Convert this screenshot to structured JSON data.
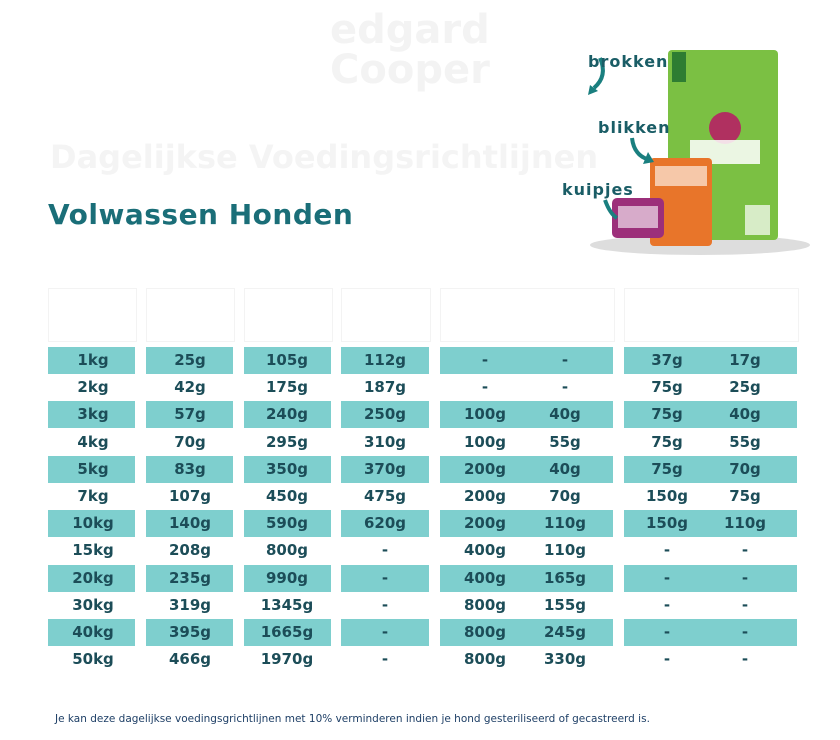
{
  "logo": "edgard Cooper",
  "header": {
    "title": "Dagelijkse Voedingsrichtlijnen",
    "subtitle": "Volwassen Honden"
  },
  "product_labels": [
    "brokken",
    "blikken",
    "kuipjes"
  ],
  "table": {
    "rows": [
      [
        "1kg",
        "25g",
        "105g",
        "112g",
        "-",
        "-",
        "37g",
        "17g"
      ],
      [
        "2kg",
        "42g",
        "175g",
        "187g",
        "-",
        "-",
        "75g",
        "25g"
      ],
      [
        "3kg",
        "57g",
        "240g",
        "250g",
        "100g",
        "40g",
        "75g",
        "40g"
      ],
      [
        "4kg",
        "70g",
        "295g",
        "310g",
        "100g",
        "55g",
        "75g",
        "55g"
      ],
      [
        "5kg",
        "83g",
        "350g",
        "370g",
        "200g",
        "40g",
        "75g",
        "70g"
      ],
      [
        "7kg",
        "107g",
        "450g",
        "475g",
        "200g",
        "70g",
        "150g",
        "75g"
      ],
      [
        "10kg",
        "140g",
        "590g",
        "620g",
        "200g",
        "110g",
        "150g",
        "110g"
      ],
      [
        "15kg",
        "208g",
        "800g",
        "-",
        "400g",
        "110g",
        "-",
        "-"
      ],
      [
        "20kg",
        "235g",
        "990g",
        "-",
        "400g",
        "165g",
        "-",
        "-"
      ],
      [
        "30kg",
        "319g",
        "1345g",
        "-",
        "800g",
        "155g",
        "-",
        "-"
      ],
      [
        "40kg",
        "395g",
        "1665g",
        "-",
        "800g",
        "245g",
        "-",
        "-"
      ],
      [
        "50kg",
        "466g",
        "1970g",
        "-",
        "800g",
        "330g",
        "-",
        "-"
      ]
    ]
  },
  "footnote": "Je kan deze dagelijkse voedingsgrichtlijnen met 10% verminderen indien je hond gesteriliseerd of gecastreerd is."
}
